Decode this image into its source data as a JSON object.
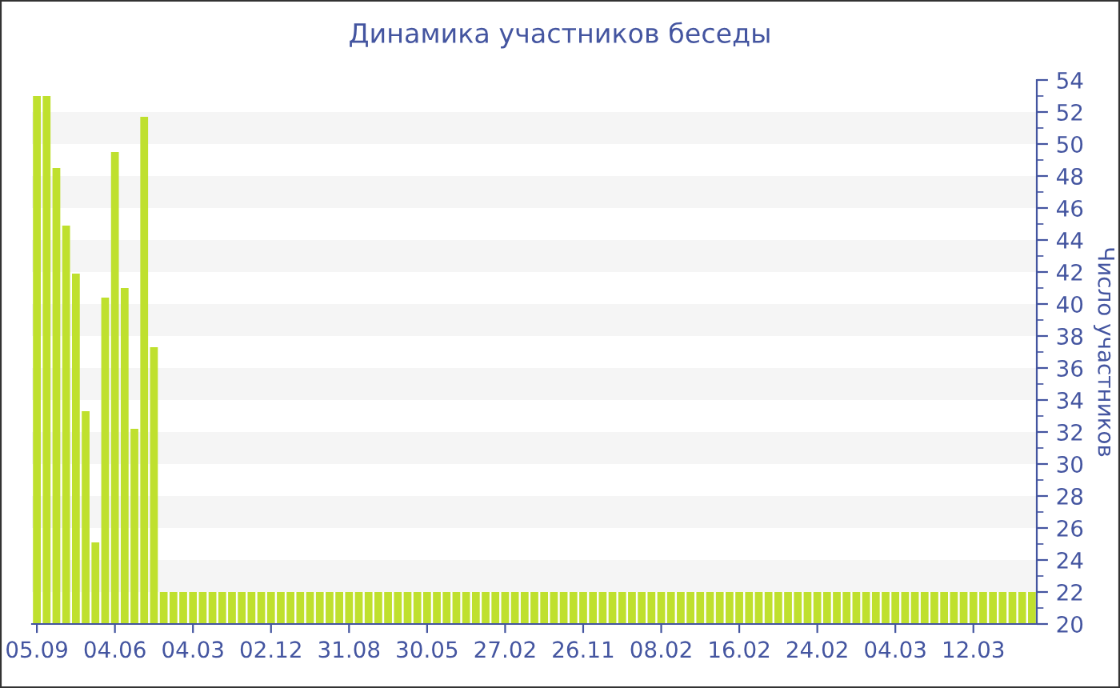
{
  "chart_data": {
    "type": "bar",
    "title": "Динамика участников беседы",
    "ylabel": "Число участников",
    "categories": [
      "05.09",
      null,
      null,
      null,
      null,
      null,
      null,
      null,
      "04.06",
      null,
      null,
      null,
      null,
      null,
      null,
      null,
      "04.03",
      null,
      null,
      null,
      null,
      null,
      null,
      null,
      "02.12",
      null,
      null,
      null,
      null,
      null,
      null,
      null,
      "31.08",
      null,
      null,
      null,
      null,
      null,
      null,
      null,
      "30.05",
      null,
      null,
      null,
      null,
      null,
      null,
      null,
      "27.02",
      null,
      null,
      null,
      null,
      null,
      null,
      null,
      "26.11",
      null,
      null,
      null,
      null,
      null,
      null,
      null,
      "08.02",
      null,
      null,
      null,
      null,
      null,
      null,
      null,
      "16.02",
      null,
      null,
      null,
      null,
      null,
      null,
      null,
      "24.02",
      null,
      null,
      null,
      null,
      null,
      null,
      null,
      "04.03",
      null,
      null,
      null,
      null,
      null,
      null,
      null,
      "12.03",
      null,
      null,
      null,
      null,
      null,
      null
    ],
    "values": [
      53,
      53,
      48.5,
      44.9,
      41.9,
      33.3,
      25.1,
      40.4,
      49.5,
      41,
      32.2,
      51.7,
      37.3,
      22,
      22,
      22,
      22,
      22,
      22,
      22,
      22,
      22,
      22,
      22,
      22,
      22,
      22,
      22,
      22,
      22,
      22,
      22,
      22,
      22,
      22,
      22,
      22,
      22,
      22,
      22,
      22,
      22,
      22,
      22,
      22,
      22,
      22,
      22,
      22,
      22,
      22,
      22,
      22,
      22,
      22,
      22,
      22,
      22,
      22,
      22,
      22,
      22,
      22,
      22,
      22,
      22,
      22,
      22,
      22,
      22,
      22,
      22,
      22,
      22,
      22,
      22,
      22,
      22,
      22,
      22,
      22,
      22,
      22,
      22,
      22,
      22,
      22,
      22,
      22,
      22,
      22,
      22,
      22,
      22,
      22,
      22,
      22,
      22,
      22,
      22,
      22,
      22,
      22
    ],
    "color": "#bfe02e",
    "ylim": [
      20,
      54
    ],
    "yticks": [
      20,
      22,
      24,
      26,
      28,
      30,
      32,
      34,
      36,
      38,
      40,
      42,
      44,
      46,
      48,
      50,
      52,
      54
    ],
    "bands": [
      {
        "axis": "y",
        "from": 50,
        "to": 52,
        "color": "#f5f5f5"
      },
      {
        "axis": "y",
        "from": 46,
        "to": 48,
        "color": "#f5f5f5"
      },
      {
        "axis": "y",
        "from": 42,
        "to": 44,
        "color": "#f5f5f5"
      },
      {
        "axis": "y",
        "from": 38,
        "to": 40,
        "color": "#f5f5f5"
      },
      {
        "axis": "y",
        "from": 34,
        "to": 36,
        "color": "#f5f5f5"
      },
      {
        "axis": "y",
        "from": 30,
        "to": 32,
        "color": "#f5f5f5"
      },
      {
        "axis": "y",
        "from": 26,
        "to": 28,
        "color": "#f5f5f5"
      },
      {
        "axis": "y",
        "from": 22,
        "to": 24,
        "color": "#f5f5f5"
      }
    ],
    "legend": false
  }
}
